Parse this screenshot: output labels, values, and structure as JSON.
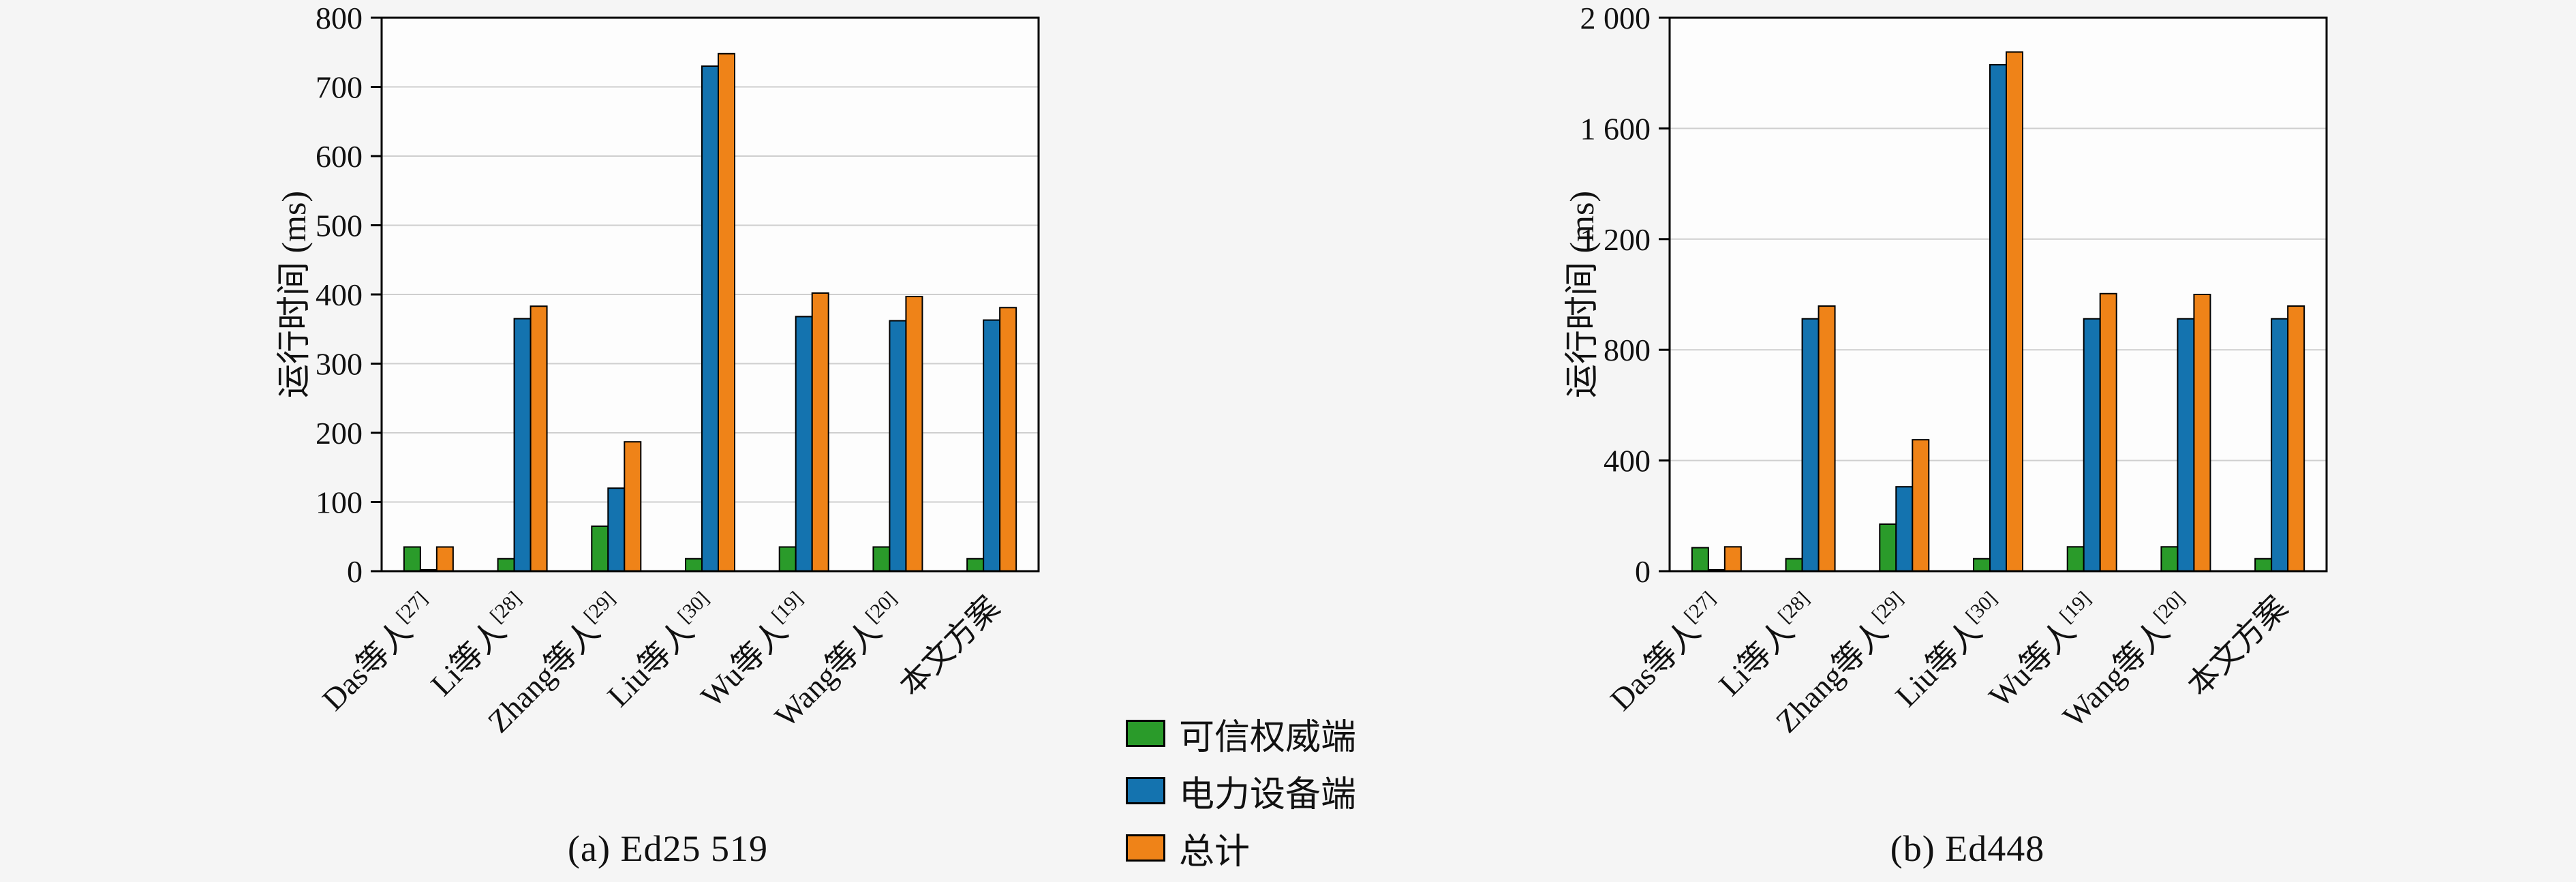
{
  "figure": {
    "background": "#f5f5f5",
    "legend": {
      "items": [
        {
          "label": "可信权威端",
          "color": "#2a9b2a"
        },
        {
          "label": "电力设备端",
          "color": "#1473af"
        },
        {
          "label": "总计",
          "color": "#ef8318"
        }
      ]
    }
  },
  "chart_data": [
    {
      "type": "bar",
      "title": "(a) Ed25 519",
      "ylabel": "运行时间 (ms)",
      "xlabel": "",
      "ylim": [
        0,
        800
      ],
      "yticks": [
        0,
        100,
        200,
        300,
        400,
        500,
        600,
        700,
        800
      ],
      "ytick_labels": [
        "0",
        "100",
        "200",
        "300",
        "400",
        "500",
        "600",
        "700",
        "800"
      ],
      "grid": true,
      "legend_position": "figure-bottom-center",
      "categories": [
        {
          "label": "Das等人",
          "sup": "[27]"
        },
        {
          "label": "Li等人",
          "sup": "[28]"
        },
        {
          "label": "Zhang等人",
          "sup": "[29]"
        },
        {
          "label": "Liu等人",
          "sup": "[30]"
        },
        {
          "label": "Wu等人",
          "sup": "[19]"
        },
        {
          "label": "Wang等人",
          "sup": "[20]"
        },
        {
          "label": "本文方案",
          "sup": ""
        }
      ],
      "series": [
        {
          "name": "可信权威端",
          "color": "#2a9b2a",
          "values": [
            35,
            18,
            65,
            18,
            35,
            35,
            18
          ]
        },
        {
          "name": "电力设备端",
          "color": "#1473af",
          "values": [
            2,
            365,
            120,
            730,
            368,
            362,
            363
          ]
        },
        {
          "name": "总计",
          "color": "#ef8318",
          "values": [
            35,
            383,
            187,
            748,
            402,
            397,
            381
          ]
        }
      ]
    },
    {
      "type": "bar",
      "title": "(b) Ed448",
      "ylabel": "运行时间 (ms)",
      "xlabel": "",
      "ylim": [
        0,
        2000
      ],
      "yticks": [
        0,
        400,
        800,
        1200,
        1600,
        2000
      ],
      "ytick_labels": [
        "0",
        "400",
        "800",
        "1 200",
        "1 600",
        "2 000"
      ],
      "grid": true,
      "legend_position": "figure-bottom-center",
      "categories": [
        {
          "label": "Das等人",
          "sup": "[27]"
        },
        {
          "label": "Li等人",
          "sup": "[28]"
        },
        {
          "label": "Zhang等人",
          "sup": "[29]"
        },
        {
          "label": "Liu等人",
          "sup": "[30]"
        },
        {
          "label": "Wu等人",
          "sup": "[19]"
        },
        {
          "label": "Wang等人",
          "sup": "[20]"
        },
        {
          "label": "本文方案",
          "sup": ""
        }
      ],
      "series": [
        {
          "name": "可信权威端",
          "color": "#2a9b2a",
          "values": [
            85,
            45,
            170,
            45,
            88,
            88,
            45
          ]
        },
        {
          "name": "电力设备端",
          "color": "#1473af",
          "values": [
            5,
            912,
            305,
            1830,
            912,
            912,
            912
          ]
        },
        {
          "name": "总计",
          "color": "#ef8318",
          "values": [
            88,
            958,
            475,
            1876,
            1003,
            1000,
            958
          ]
        }
      ]
    }
  ]
}
